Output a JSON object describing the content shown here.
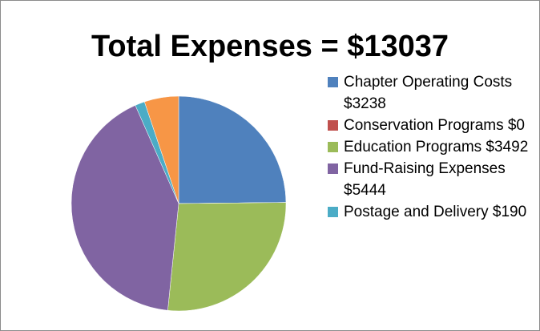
{
  "chart_data": {
    "type": "pie",
    "title": "Total Expenses = $13037",
    "categories": [
      "Chapter Operating Costs $3238",
      "Conservation Programs $0",
      "Education Programs $3492",
      "Fund-Raising Expenses $5444",
      "Postage and Delivery $190",
      null
    ],
    "values": [
      3238,
      0,
      3492,
      5444,
      190,
      673
    ],
    "colors": [
      "#4F81BD",
      "#C0504D",
      "#9BBB59",
      "#8064A2",
      "#4BACC6",
      "#F79646"
    ],
    "legend": "right"
  }
}
